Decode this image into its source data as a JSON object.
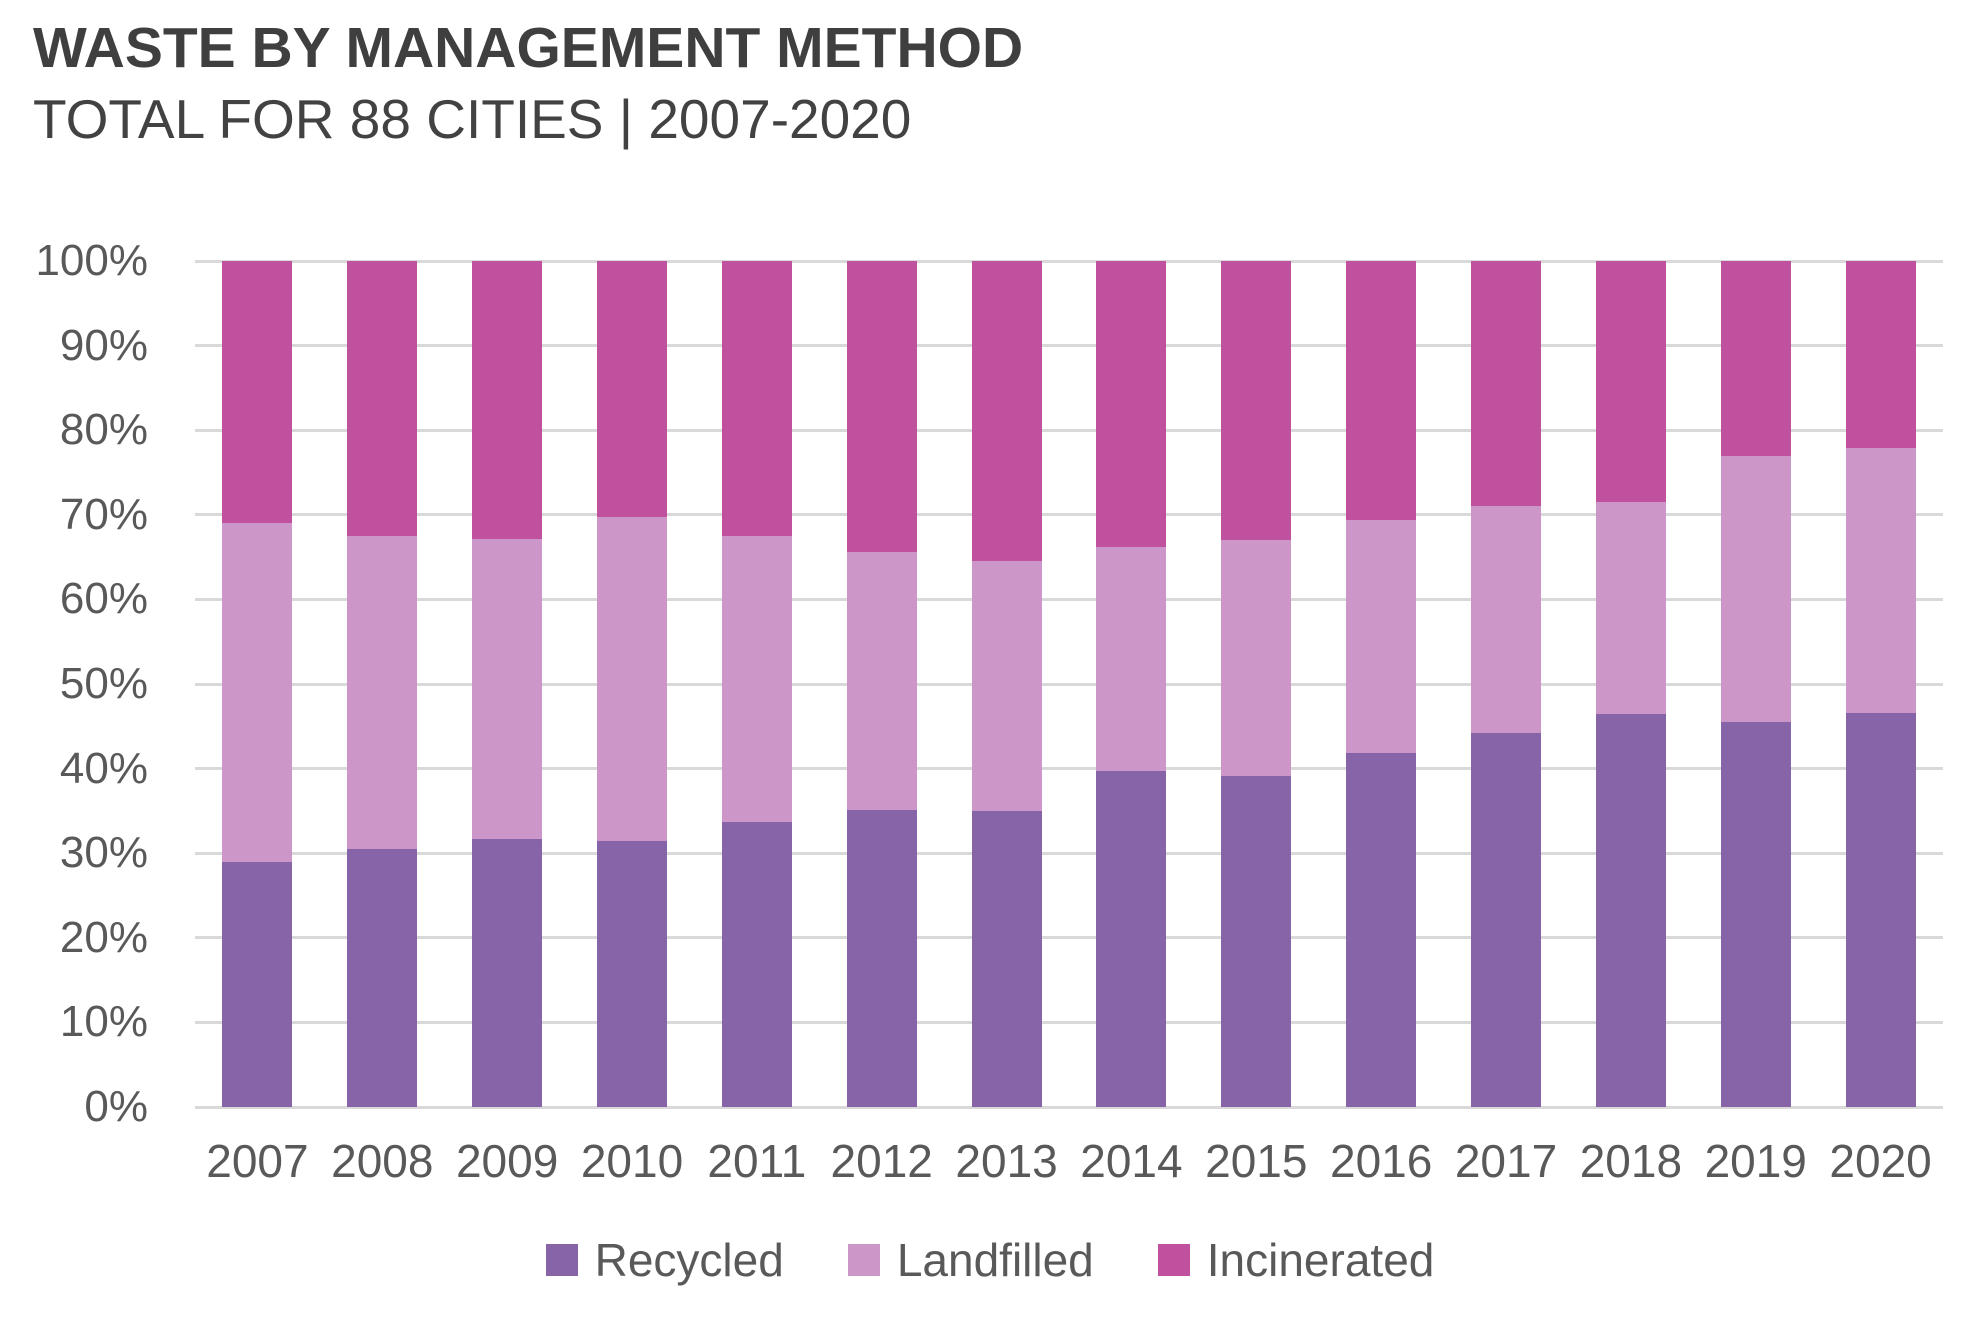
{
  "header": {
    "title": "WASTE BY MANAGEMENT METHOD",
    "subtitle": "TOTAL FOR 88 CITIES | 2007-2020"
  },
  "chart_data": {
    "type": "bar",
    "variant": "stacked-100-percent",
    "title": "WASTE BY MANAGEMENT METHOD",
    "subtitle": "TOTAL FOR 88 CITIES | 2007-2020",
    "categories": [
      "2007",
      "2008",
      "2009",
      "2010",
      "2011",
      "2012",
      "2013",
      "2014",
      "2015",
      "2016",
      "2017",
      "2018",
      "2019",
      "2020"
    ],
    "series": [
      {
        "name": "Recycled",
        "color": "#8764A8",
        "values": [
          29.0,
          30.5,
          31.7,
          31.4,
          33.7,
          35.1,
          35.0,
          39.7,
          39.1,
          41.9,
          44.2,
          46.5,
          45.5,
          46.6
        ]
      },
      {
        "name": "Landfilled",
        "color": "#CC96C9",
        "values": [
          40.0,
          37.0,
          35.5,
          38.3,
          33.8,
          30.5,
          29.6,
          26.5,
          27.9,
          27.5,
          26.9,
          25.0,
          31.4,
          31.3
        ]
      },
      {
        "name": "Incinerated",
        "color": "#C0519F",
        "values": [
          31.0,
          32.5,
          32.8,
          30.3,
          32.5,
          34.4,
          35.4,
          33.8,
          33.0,
          30.6,
          28.9,
          28.5,
          23.1,
          22.1
        ]
      }
    ],
    "xlabel": "",
    "ylabel": "",
    "ylim": [
      0,
      100
    ],
    "y_ticks": [
      "0%",
      "10%",
      "20%",
      "30%",
      "40%",
      "50%",
      "60%",
      "70%",
      "80%",
      "90%",
      "100%"
    ],
    "grid": "horizontal",
    "legend_position": "bottom"
  },
  "legend": {
    "items": [
      {
        "label": "Recycled",
        "color": "#8764A8"
      },
      {
        "label": "Landfilled",
        "color": "#CC96C9"
      },
      {
        "label": "Incinerated",
        "color": "#C0519F"
      }
    ]
  },
  "colors": {
    "background": "#FFFFFF",
    "title_text": "#3F3F3F",
    "axis_text": "#595959",
    "gridline": "#D9D9D9",
    "recycled": "#8764A8",
    "landfilled": "#CC96C9",
    "incinerated": "#C0519F"
  }
}
